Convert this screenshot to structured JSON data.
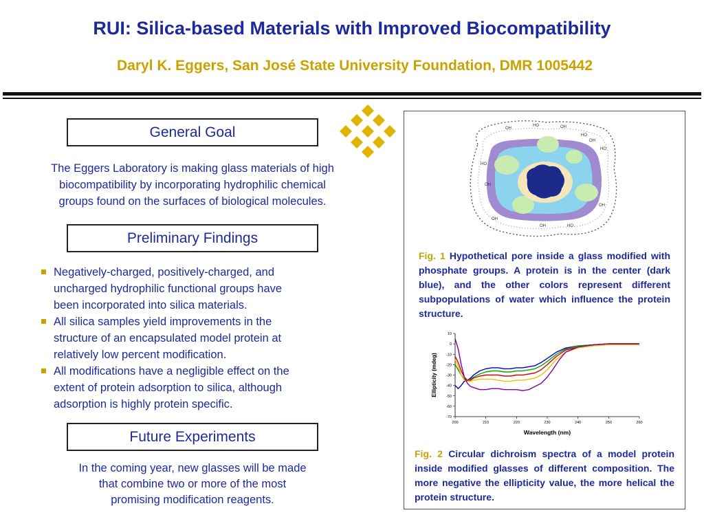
{
  "header": {
    "title": "RUI: Silica-based Materials with Improved Biocompatibility",
    "subtitle": "Daryl K. Eggers, San José State University Foundation, DMR 1005442"
  },
  "logo": {
    "icon": "diamond-lattice-logo",
    "color": "#e0b400"
  },
  "general_goal": {
    "heading": "General Goal",
    "lines": [
      "The Eggers Laboratory is making glass materials of high",
      "biocompatibility by incorporating hydrophilic chemical",
      "groups found on the surfaces of biological molecules."
    ]
  },
  "preliminary_findings": {
    "heading": "Preliminary Findings",
    "items": [
      {
        "lines": [
          "Negatively-charged, positively-charged, and",
          "uncharged hydrophilic functional groups have",
          "been incorporated into silica materials."
        ]
      },
      {
        "lines": [
          "All silica samples yield improvements in the",
          "structure of an encapsulated model protein at",
          "relatively low percent modification."
        ]
      },
      {
        "lines": [
          "All modifications have a negligible effect on the",
          "extent of protein adsorption to silica, although",
          "adsorption is highly protein specific."
        ]
      }
    ]
  },
  "future_experiments": {
    "heading": "Future Experiments",
    "lines": [
      "In the coming year, new glasses will be made",
      "that combine two or more of the most",
      "promising modification reagents."
    ]
  },
  "figure1": {
    "label": "Fig. 1",
    "text": "Hypothetical pore inside a glass modified with phosphate groups. A protein is in the center (dark blue), and the other colors represent different subpopulations of water which influence the protein structure."
  },
  "figure2": {
    "label": "Fig. 2",
    "text": "Circular dichroism spectra of a model protein inside modified glasses of different composition.  The more negative the ellipticity value, the more helical the protein structure."
  },
  "chart_data": {
    "type": "line",
    "xlabel": "Wavelength (nm)",
    "ylabel": "Ellipticity (mdeg)",
    "xlim": [
      200,
      260
    ],
    "ylim": [
      -70,
      10
    ],
    "xticks": [
      200,
      210,
      220,
      230,
      240,
      250,
      260
    ],
    "yticks": [
      10,
      0,
      -10,
      -20,
      -30,
      -40,
      -50,
      -60,
      -70
    ],
    "grid": false,
    "series": [
      {
        "color": "#0000cc",
        "x": [
          200,
          201,
          202,
          203,
          204,
          205,
          206,
          208,
          210,
          212,
          214,
          216,
          218,
          220,
          222,
          224,
          226,
          228,
          230,
          233,
          236,
          240,
          245,
          250,
          255,
          260
        ],
        "y": [
          -40,
          -43,
          -40,
          -36,
          -35,
          -33,
          -30,
          -26,
          -24,
          -23,
          -23,
          -24,
          -24,
          -23,
          -23,
          -22,
          -21,
          -18,
          -14,
          -8,
          -4,
          -2,
          -1,
          0,
          0,
          0
        ]
      },
      {
        "color": "#00aa00",
        "x": [
          200,
          201,
          202,
          203,
          204,
          205,
          206,
          208,
          210,
          212,
          214,
          216,
          218,
          220,
          222,
          224,
          226,
          228,
          230,
          233,
          236,
          240,
          245,
          250,
          255,
          260
        ],
        "y": [
          -20,
          -25,
          -30,
          -34,
          -35,
          -34,
          -32,
          -29,
          -27,
          -26,
          -26,
          -27,
          -27,
          -26,
          -26,
          -25,
          -24,
          -21,
          -17,
          -10,
          -5,
          -2,
          -1,
          0,
          0,
          0
        ]
      },
      {
        "color": "#dd0000",
        "x": [
          200,
          201,
          202,
          203,
          204,
          205,
          206,
          208,
          210,
          212,
          214,
          216,
          218,
          220,
          222,
          224,
          226,
          228,
          230,
          233,
          236,
          240,
          245,
          250,
          255,
          260
        ],
        "y": [
          -12,
          -18,
          -26,
          -32,
          -35,
          -35,
          -33,
          -31,
          -30,
          -30,
          -30,
          -31,
          -31,
          -30,
          -30,
          -29,
          -28,
          -25,
          -20,
          -12,
          -6,
          -3,
          -1,
          0,
          0,
          0
        ]
      },
      {
        "color": "#e8c000",
        "x": [
          200,
          201,
          202,
          203,
          204,
          205,
          206,
          208,
          210,
          212,
          214,
          216,
          218,
          220,
          222,
          224,
          226,
          228,
          230,
          233,
          236,
          240,
          245,
          250,
          255,
          260
        ],
        "y": [
          -15,
          -22,
          -30,
          -35,
          -36,
          -36,
          -35,
          -34,
          -34,
          -34,
          -35,
          -36,
          -36,
          -35,
          -35,
          -34,
          -33,
          -30,
          -25,
          -15,
          -8,
          -4,
          -2,
          -1,
          -1,
          -1
        ]
      },
      {
        "color": "#8000a0",
        "x": [
          200,
          201,
          202,
          203,
          204,
          205,
          206,
          207,
          208,
          210,
          212,
          214,
          216,
          218,
          220,
          222,
          224,
          226,
          228,
          230,
          232,
          234,
          236,
          240,
          245,
          250,
          255,
          260
        ],
        "y": [
          5,
          -5,
          -20,
          -32,
          -38,
          -41,
          -42,
          -43,
          -44,
          -44,
          -43,
          -43,
          -44,
          -44,
          -44,
          -45,
          -44,
          -41,
          -38,
          -32,
          -24,
          -15,
          -8,
          -3,
          -1,
          0,
          0,
          0
        ]
      }
    ]
  }
}
